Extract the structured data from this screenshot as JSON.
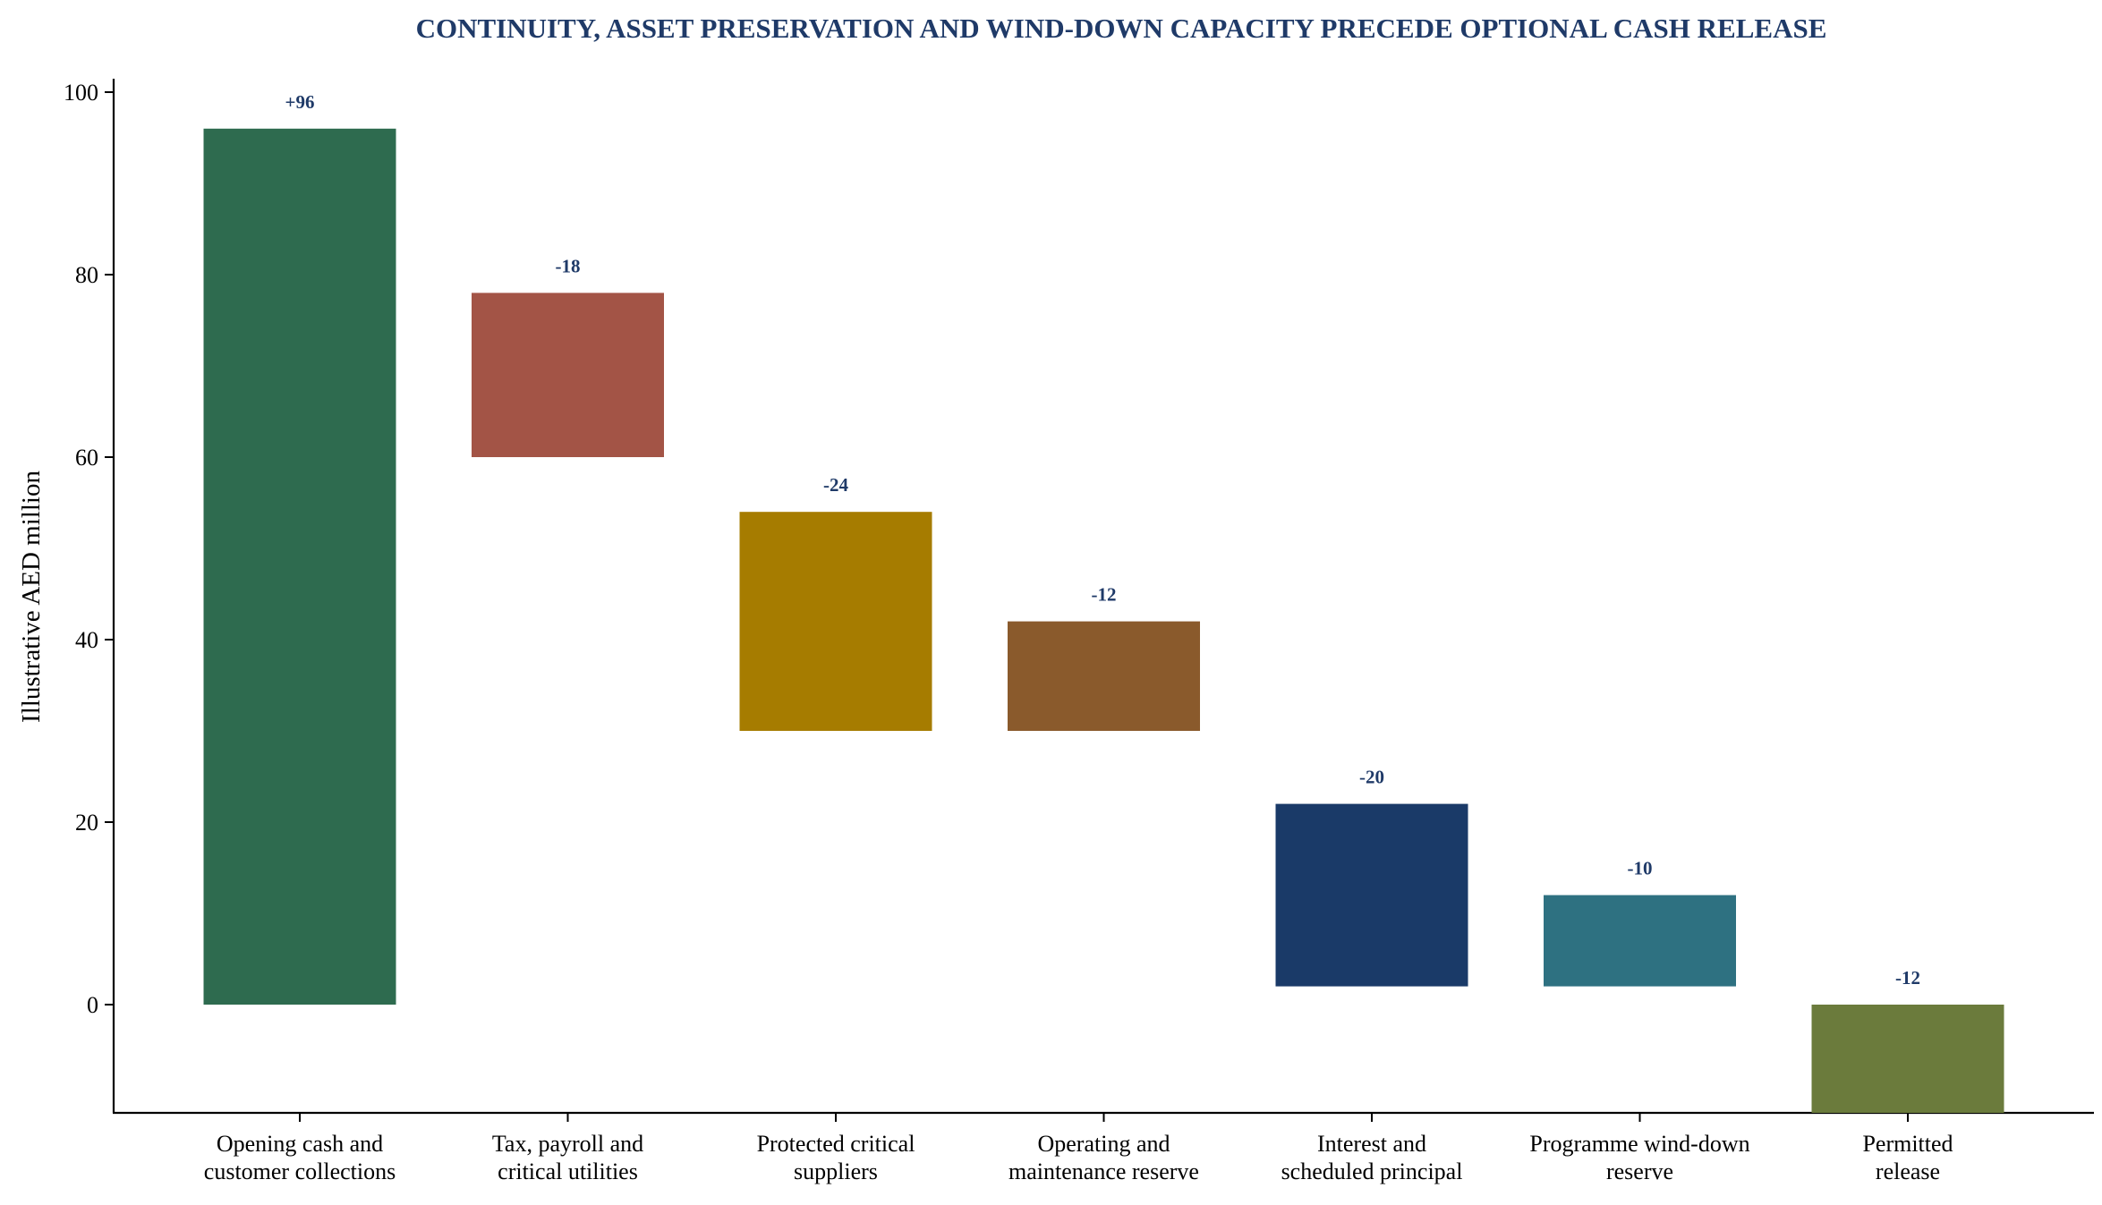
{
  "chart_data": {
    "type": "bar",
    "subtype": "waterfall",
    "title": "CONTINUITY, ASSET PRESERVATION AND WIND-DOWN CAPACITY PRECEDE OPTIONAL CASH RELEASE",
    "xlabel": "",
    "ylabel": "Illustrative AED million",
    "ylim": [
      -12,
      102
    ],
    "yticks": [
      "0",
      "20",
      "40",
      "60",
      "80",
      "100"
    ],
    "grid": false,
    "categories": [
      [
        "Opening cash and",
        "customer collections"
      ],
      [
        "Tax, payroll and",
        "critical utilities"
      ],
      [
        "Protected critical",
        "suppliers"
      ],
      [
        "Operating and",
        "maintenance reserve"
      ],
      [
        "Interest and",
        "scheduled principal"
      ],
      [
        "Programme wind-down",
        "reserve"
      ],
      [
        "Permitted",
        "release"
      ]
    ],
    "bars": [
      {
        "start": 0,
        "end": 96,
        "label": "+96",
        "color": "#2e6b4f"
      },
      {
        "start": 78,
        "end": 60,
        "label": "-18",
        "color": "#a35446"
      },
      {
        "start": 54,
        "end": 30,
        "label": "-24",
        "color": "#a67c00"
      },
      {
        "start": 42,
        "end": 30,
        "label": "-12",
        "color": "#8a5a2c"
      },
      {
        "start": 22,
        "end": 2,
        "label": "-20",
        "color": "#1a3a68"
      },
      {
        "start": 12,
        "end": 2,
        "label": "-10",
        "color": "#2e7181"
      },
      {
        "start": 0,
        "end": -12,
        "label": "-12",
        "color": "#6b7b3c"
      }
    ],
    "colors": {
      "title": "#1f3a68",
      "data_label": "#1f3a68",
      "axis": "#000000"
    }
  }
}
